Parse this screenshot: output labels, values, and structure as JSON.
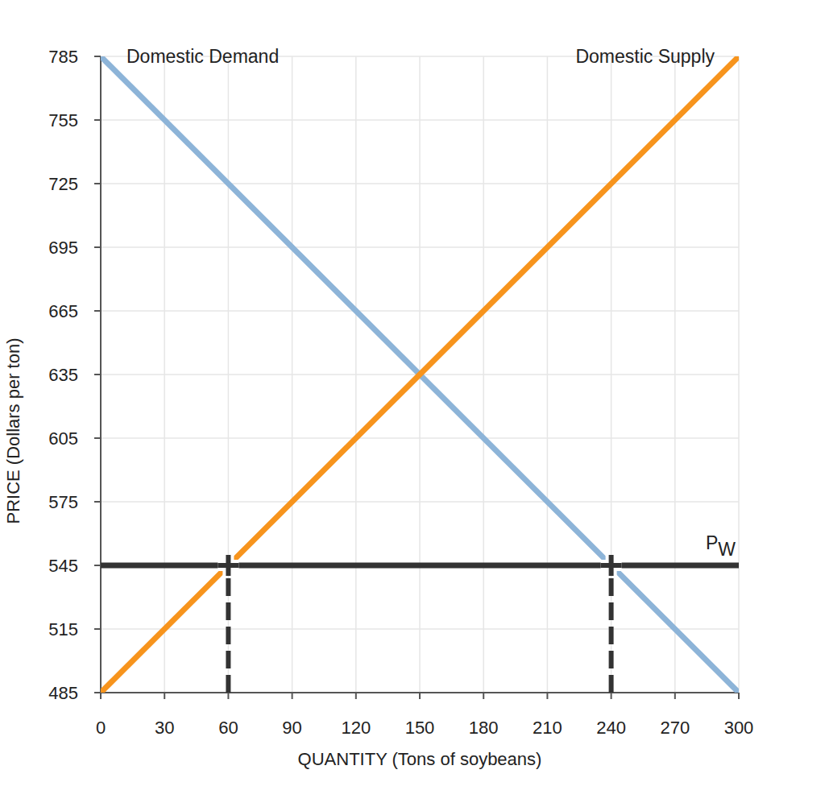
{
  "chart_data": {
    "type": "line",
    "x_label": "QUANTITY (Tons of soybeans)",
    "y_label": "PRICE (Dollars per ton)",
    "xlim": [
      0,
      300
    ],
    "ylim": [
      485,
      785
    ],
    "xticks": [
      0,
      30,
      60,
      90,
      120,
      150,
      180,
      210,
      240,
      270,
      300
    ],
    "yticks": [
      485,
      515,
      545,
      575,
      605,
      635,
      665,
      695,
      725,
      755,
      785
    ],
    "grid": true,
    "series": [
      {
        "name": "Domestic Demand",
        "type": "line",
        "color": "#8db4d8",
        "line_style": "solid",
        "x": [
          0,
          300
        ],
        "values": [
          785,
          485
        ]
      },
      {
        "name": "Domestic Supply",
        "type": "line",
        "color": "#f7941d",
        "line_style": "solid",
        "x": [
          0,
          300
        ],
        "values": [
          485,
          785
        ]
      },
      {
        "name": "PW",
        "type": "line",
        "color": "#333333",
        "line_style": "solid",
        "x": [
          0,
          300
        ],
        "values": [
          545,
          545
        ]
      },
      {
        "type": "line",
        "color": "#333333",
        "line_style": "dashed",
        "x": [
          60,
          60
        ],
        "values": [
          485,
          545
        ]
      },
      {
        "type": "line",
        "color": "#333333",
        "line_style": "dashed",
        "x": [
          240,
          240
        ],
        "values": [
          485,
          545
        ]
      },
      {
        "type": "scatter",
        "color": "#333333",
        "marker": "plus",
        "x": [
          60,
          240
        ],
        "values": [
          545,
          545
        ]
      }
    ]
  }
}
